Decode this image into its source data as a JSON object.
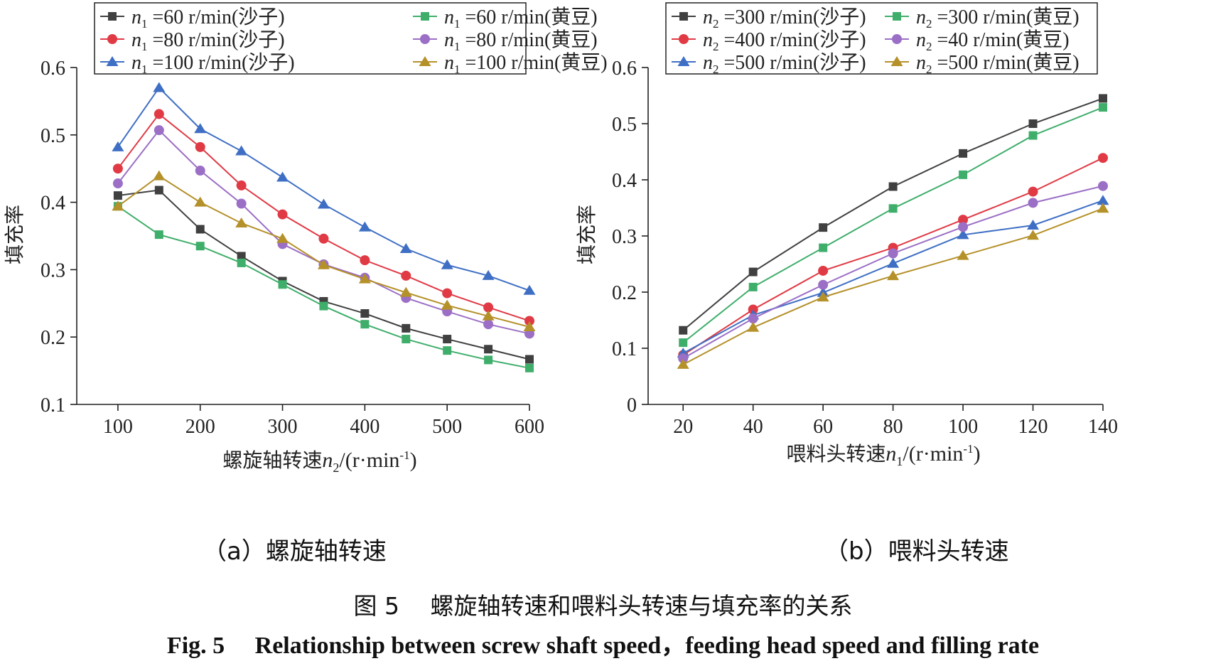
{
  "chart_data": [
    {
      "type": "line",
      "xlabel": "螺旋轴转速n2/(r·min-1)",
      "xlabel_parts": [
        "螺旋轴转速",
        "n",
        "2",
        "/(r·min",
        "-1",
        ")"
      ],
      "ylabel": "填充率",
      "xlim": [
        50,
        600
      ],
      "ylim": [
        0.1,
        0.6
      ],
      "xticks": [
        100,
        200,
        300,
        400,
        500,
        600
      ],
      "yticks": [
        "0.1",
        "0.2",
        "0.3",
        "0.4",
        "0.5",
        "0.6"
      ],
      "grid": false,
      "legend_position": "top",
      "x": [
        100,
        150,
        200,
        250,
        300,
        350,
        400,
        450,
        500,
        550,
        600
      ],
      "series": [
        {
          "name": "n1 =60 r/min(沙子)",
          "var": "n",
          "sub": "1",
          "rest": " =60 r/min(沙子)",
          "color": "#404040",
          "marker": "square",
          "values": [
            0.41,
            0.418,
            0.36,
            0.32,
            0.283,
            0.253,
            0.235,
            0.213,
            0.197,
            0.182,
            0.167
          ]
        },
        {
          "name": "n1 =80 r/min(沙子)",
          "var": "n",
          "sub": "1",
          "rest": " =80 r/min(沙子)",
          "color": "#e03a45",
          "marker": "circle",
          "values": [
            0.45,
            0.531,
            0.482,
            0.425,
            0.382,
            0.346,
            0.314,
            0.291,
            0.265,
            0.244,
            0.224
          ]
        },
        {
          "name": "n1 =100 r/min(沙子)",
          "var": "n",
          "sub": "1",
          "rest": " =100 r/min(沙子)",
          "color": "#3f6fc4",
          "marker": "triangle",
          "values": [
            0.482,
            0.57,
            0.509,
            0.476,
            0.437,
            0.397,
            0.363,
            0.331,
            0.307,
            0.291,
            0.269
          ]
        },
        {
          "name": "n1 =60 r/min(黄豆)",
          "var": "n",
          "sub": "1",
          "rest": " =60 r/min(黄豆)",
          "color": "#3fae6b",
          "marker": "square",
          "values": [
            0.394,
            0.352,
            0.335,
            0.31,
            0.278,
            0.246,
            0.219,
            0.197,
            0.18,
            0.166,
            0.154
          ]
        },
        {
          "name": "n1 =80 r/min(黄豆)",
          "var": "n",
          "sub": "1",
          "rest": " =80 r/min(黄豆)",
          "color": "#9b6fc6",
          "marker": "circle",
          "values": [
            0.428,
            0.507,
            0.447,
            0.398,
            0.338,
            0.308,
            0.288,
            0.258,
            0.238,
            0.219,
            0.205
          ]
        },
        {
          "name": "n1 =100 r/min(黄豆)",
          "var": "n",
          "sub": "1",
          "rest": " =100 r/min(黄豆)",
          "color": "#b5912a",
          "marker": "triangle",
          "values": [
            0.394,
            0.439,
            0.4,
            0.369,
            0.346,
            0.307,
            0.286,
            0.266,
            0.247,
            0.231,
            0.215
          ]
        }
      ]
    },
    {
      "type": "line",
      "xlabel": "喂料头转速n1/(r·min-1)",
      "xlabel_parts": [
        "喂料头转速",
        "n",
        "1",
        "/(r·min",
        "-1",
        ")"
      ],
      "ylabel": "填充率",
      "xlim": [
        10,
        140
      ],
      "ylim": [
        0,
        0.6
      ],
      "xticks": [
        20,
        40,
        60,
        80,
        100,
        120,
        140
      ],
      "yticks": [
        "0",
        "0.1",
        "0.2",
        "0.3",
        "0.4",
        "0.5",
        "0.6"
      ],
      "grid": false,
      "legend_position": "top",
      "x": [
        20,
        40,
        60,
        80,
        100,
        120,
        140
      ],
      "series": [
        {
          "name": "n2 =300 r/min(沙子)",
          "var": "n",
          "sub": "2",
          "rest": " =300 r/min(沙子)",
          "color": "#404040",
          "marker": "square",
          "values": [
            0.132,
            0.236,
            0.315,
            0.388,
            0.447,
            0.5,
            0.545
          ]
        },
        {
          "name": "n2 =400 r/min(沙子)",
          "var": "n",
          "sub": "2",
          "rest": " =400 r/min(沙子)",
          "color": "#e03a45",
          "marker": "circle",
          "values": [
            0.088,
            0.169,
            0.238,
            0.279,
            0.329,
            0.379,
            0.439
          ]
        },
        {
          "name": "n2 =500 r/min(沙子)",
          "var": "n",
          "sub": "2",
          "rest": " =500 r/min(沙子)",
          "color": "#3f6fc4",
          "marker": "triangle",
          "values": [
            0.091,
            0.159,
            0.199,
            0.251,
            0.302,
            0.319,
            0.363
          ]
        },
        {
          "name": "n2 =300 r/min(黄豆)",
          "var": "n",
          "sub": "2",
          "rest": " =300 r/min(黄豆)",
          "color": "#3fae6b",
          "marker": "square",
          "values": [
            0.11,
            0.209,
            0.279,
            0.349,
            0.409,
            0.479,
            0.529
          ]
        },
        {
          "name": "n2 =40 r/min(黄豆)",
          "var": "n",
          "sub": "2",
          "rest": " =40 r/min(黄豆)",
          "color": "#9b6fc6",
          "marker": "circle",
          "values": [
            0.082,
            0.153,
            0.213,
            0.269,
            0.316,
            0.359,
            0.389
          ]
        },
        {
          "name": "n2 =500 r/min(黄豆)",
          "var": "n",
          "sub": "2",
          "rest": " =500 r/min(黄豆)",
          "color": "#b5912a",
          "marker": "triangle",
          "values": [
            0.071,
            0.137,
            0.191,
            0.229,
            0.265,
            0.301,
            0.349
          ]
        }
      ]
    }
  ],
  "subcaptions": {
    "a": "（a）螺旋轴转速",
    "b": "（b）喂料头转速"
  },
  "caption": {
    "cn": "图 5　 螺旋轴转速和喂料头转速与填充率的关系",
    "en": "Fig. 5　 Relationship between screw shaft speed，feeding head speed and filling rate"
  }
}
